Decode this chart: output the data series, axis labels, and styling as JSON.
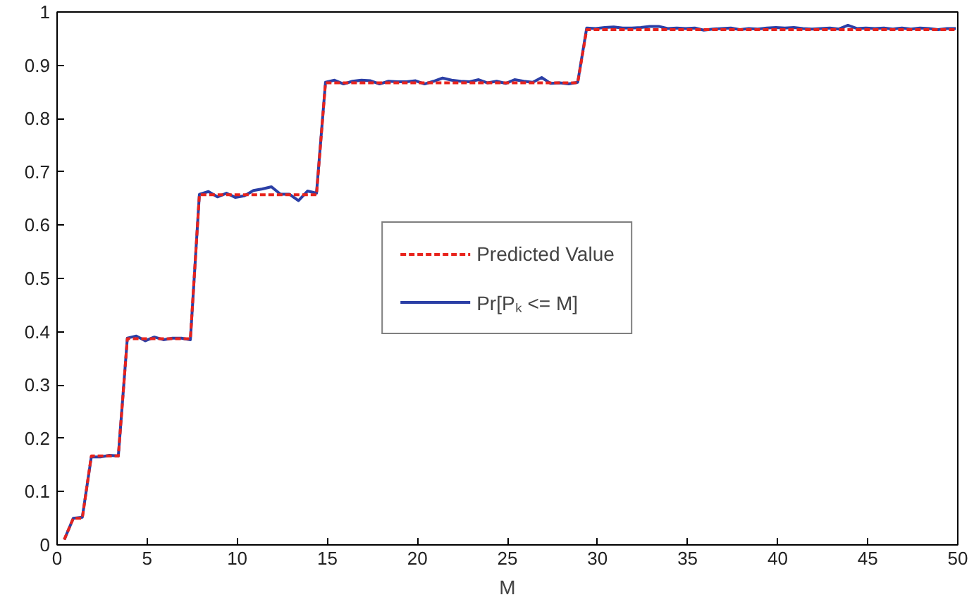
{
  "chart_data": {
    "type": "line",
    "xlabel": "M",
    "xlim": [
      0,
      50
    ],
    "xticks": [
      0,
      5,
      10,
      15,
      20,
      25,
      30,
      35,
      40,
      45,
      50
    ],
    "ylim": [
      0,
      1
    ],
    "yticks": [
      0,
      0.1,
      0.2,
      0.3,
      0.4,
      0.5,
      0.6,
      0.7,
      0.8,
      0.9,
      1
    ],
    "grid": false,
    "legend": "center",
    "series": [
      {
        "name": "Predicted Value",
        "color": "#e8231c",
        "line_style": "dashed",
        "x": [
          0.4,
          0.9,
          1.4,
          1.9,
          3.4,
          3.9,
          7.4,
          7.9,
          14.4,
          14.9,
          28.9,
          29.4,
          49.9
        ],
        "values": [
          0.01,
          0.05,
          0.05,
          0.167,
          0.167,
          0.387,
          0.387,
          0.657,
          0.657,
          0.867,
          0.867,
          0.967,
          0.967
        ]
      },
      {
        "name": "Pr[Pₖ <= M]",
        "color": "#2b3fa6",
        "line_style": "solid",
        "x": [
          0.4,
          0.9,
          1.4,
          1.9,
          2.4,
          2.9,
          3.4,
          3.9,
          4.4,
          4.9,
          5.4,
          5.9,
          6.4,
          6.9,
          7.4,
          7.9,
          8.4,
          8.9,
          9.4,
          9.9,
          10.4,
          10.9,
          11.4,
          11.9,
          12.4,
          12.9,
          13.4,
          13.9,
          14.4,
          14.9,
          15.4,
          15.9,
          16.4,
          16.9,
          17.4,
          17.9,
          18.4,
          18.9,
          19.4,
          19.9,
          20.4,
          20.9,
          21.4,
          21.9,
          22.4,
          22.9,
          23.4,
          23.9,
          24.4,
          24.9,
          25.4,
          25.9,
          26.4,
          26.9,
          27.4,
          27.9,
          28.4,
          28.9,
          29.4,
          29.9,
          30.4,
          30.9,
          31.4,
          31.9,
          32.4,
          32.9,
          33.4,
          33.9,
          34.4,
          34.9,
          35.4,
          35.9,
          36.4,
          36.9,
          37.4,
          37.9,
          38.4,
          38.9,
          39.4,
          39.9,
          40.4,
          40.9,
          41.4,
          41.9,
          42.4,
          42.9,
          43.4,
          43.9,
          44.4,
          44.9,
          45.4,
          45.9,
          46.4,
          46.9,
          47.4,
          47.9,
          48.4,
          48.9,
          49.4,
          49.9
        ],
        "values": [
          0.01,
          0.05,
          0.052,
          0.165,
          0.165,
          0.168,
          0.167,
          0.388,
          0.392,
          0.383,
          0.39,
          0.385,
          0.388,
          0.388,
          0.385,
          0.658,
          0.663,
          0.653,
          0.66,
          0.652,
          0.655,
          0.665,
          0.668,
          0.672,
          0.658,
          0.658,
          0.646,
          0.664,
          0.66,
          0.868,
          0.872,
          0.865,
          0.87,
          0.872,
          0.871,
          0.865,
          0.87,
          0.869,
          0.869,
          0.871,
          0.865,
          0.87,
          0.876,
          0.872,
          0.87,
          0.869,
          0.873,
          0.867,
          0.87,
          0.866,
          0.873,
          0.87,
          0.868,
          0.877,
          0.866,
          0.867,
          0.865,
          0.868,
          0.97,
          0.969,
          0.971,
          0.972,
          0.97,
          0.97,
          0.971,
          0.973,
          0.973,
          0.969,
          0.97,
          0.969,
          0.97,
          0.966,
          0.968,
          0.969,
          0.97,
          0.967,
          0.969,
          0.968,
          0.97,
          0.971,
          0.97,
          0.971,
          0.969,
          0.968,
          0.969,
          0.97,
          0.968,
          0.975,
          0.969,
          0.97,
          0.969,
          0.97,
          0.968,
          0.97,
          0.968,
          0.97,
          0.969,
          0.967,
          0.969,
          0.969
        ]
      }
    ]
  }
}
